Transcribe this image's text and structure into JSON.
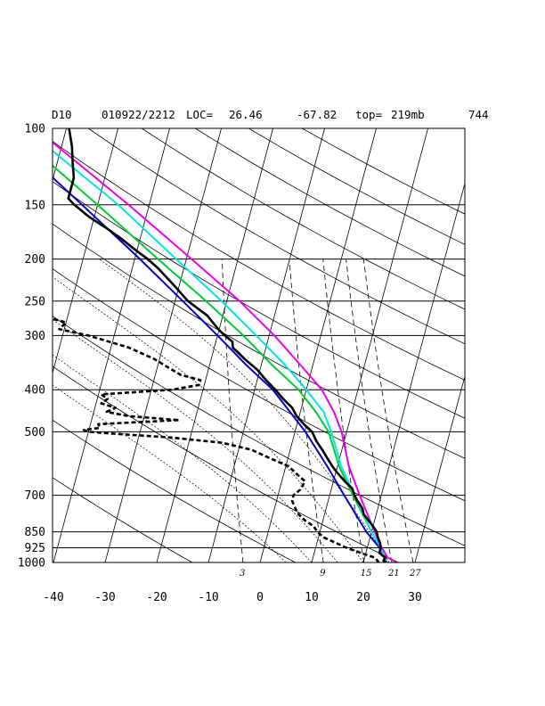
{
  "header": {
    "station": "D10",
    "datetime": "010922/2212",
    "loc_label": "LOC=",
    "lat": "26.46",
    "lon": "-67.82",
    "top_label": "top=",
    "top_value": "219mb",
    "code": "744"
  },
  "chart_data": {
    "type": "line",
    "diagram": "skew-T log-p",
    "xlim": [
      -40,
      35
    ],
    "ylim": [
      1000,
      100
    ],
    "yscale": "log",
    "pressure_ticks": [
      100,
      150,
      200,
      250,
      300,
      400,
      500,
      700,
      850,
      925,
      1000
    ],
    "pressure_tick_labels": [
      "100",
      "150",
      "200",
      "250",
      "300",
      "400",
      "500",
      "700",
      "850",
      "925",
      "1000"
    ],
    "temperature_ticks": [
      -40,
      -30,
      -20,
      -10,
      0,
      10,
      20,
      30
    ],
    "temperature_tick_labels": [
      "-40",
      "-30",
      "-20",
      "-10",
      "0",
      "10",
      "20",
      "30"
    ],
    "mixing_ratio_labels": [
      "3",
      "9",
      "15",
      "21",
      "27"
    ],
    "mixing_ratio_values": [
      3,
      9,
      15,
      21,
      27
    ],
    "isotherm_values": [
      -140,
      -130,
      -120,
      -110,
      -100,
      -90,
      -80,
      -70,
      -60,
      -50,
      -40,
      -30,
      -20,
      -10,
      0,
      10,
      20,
      30
    ],
    "dry_adiabat_thetas": [
      260,
      280,
      300,
      320,
      340,
      360,
      380,
      400,
      420,
      440,
      460,
      480,
      500
    ],
    "moist_adiabat_thetaw": [
      5,
      10,
      15,
      20,
      25
    ],
    "temperature_profile": {
      "color": "#000000",
      "points": [
        [
          1000,
          24.5
        ],
        [
          990,
          23.8
        ],
        [
          975,
          24.0
        ],
        [
          950,
          22.6
        ],
        [
          925,
          22.6
        ],
        [
          900,
          22.2
        ],
        [
          875,
          21.5
        ],
        [
          850,
          21.0
        ],
        [
          825,
          20.0
        ],
        [
          800,
          18.8
        ],
        [
          775,
          17.6
        ],
        [
          750,
          17.0
        ],
        [
          720,
          15.6
        ],
        [
          700,
          14.8
        ],
        [
          675,
          14.0
        ],
        [
          650,
          12.2
        ],
        [
          620,
          10.2
        ],
        [
          600,
          9.0
        ],
        [
          575,
          7.6
        ],
        [
          550,
          6.2
        ],
        [
          525,
          4.6
        ],
        [
          500,
          3.3
        ],
        [
          480,
          1.3
        ],
        [
          460,
          -0.5
        ],
        [
          440,
          -1.8
        ],
        [
          420,
          -4.0
        ],
        [
          400,
          -6.0
        ],
        [
          380,
          -8.3
        ],
        [
          360,
          -10.5
        ],
        [
          340,
          -13.5
        ],
        [
          320,
          -16.4
        ],
        [
          310,
          -16.8
        ],
        [
          300,
          -18.6
        ],
        [
          290,
          -20.2
        ],
        [
          270,
          -23.0
        ],
        [
          250,
          -27.5
        ],
        [
          230,
          -31.0
        ],
        [
          210,
          -35.0
        ],
        [
          200,
          -37.5
        ],
        [
          190,
          -40.5
        ],
        [
          180,
          -43.5
        ],
        [
          170,
          -47.0
        ],
        [
          160,
          -51.0
        ],
        [
          150,
          -54.5
        ],
        [
          145,
          -56.0
        ],
        [
          130,
          -56.0
        ],
        [
          120,
          -57.0
        ],
        [
          110,
          -58.0
        ],
        [
          100,
          -59.5
        ]
      ]
    },
    "dewpoint_profile": {
      "color": "#000000",
      "points": [
        [
          1000,
          23.0
        ],
        [
          975,
          22.0
        ],
        [
          950,
          19.0
        ],
        [
          925,
          16.0
        ],
        [
          900,
          13.5
        ],
        [
          875,
          11.0
        ],
        [
          850,
          9.5
        ],
        [
          825,
          8.5
        ],
        [
          800,
          6.5
        ],
        [
          775,
          5.0
        ],
        [
          750,
          4.0
        ],
        [
          720,
          3.0
        ],
        [
          700,
          3.0
        ],
        [
          680,
          4.0
        ],
        [
          650,
          4.5
        ],
        [
          625,
          2.5
        ],
        [
          600,
          0.5
        ],
        [
          575,
          -3.5
        ],
        [
          550,
          -7.5
        ],
        [
          530,
          -13.5
        ],
        [
          515,
          -24.0
        ],
        [
          505,
          -35.0
        ],
        [
          500,
          -40.0
        ],
        [
          495,
          -41.0
        ],
        [
          490,
          -38.0
        ],
        [
          480,
          -38.5
        ],
        [
          470,
          -23.0
        ],
        [
          460,
          -33.0
        ],
        [
          450,
          -37.5
        ],
        [
          440,
          -36.0
        ],
        [
          430,
          -39.0
        ],
        [
          420,
          -38.0
        ],
        [
          410,
          -39.5
        ],
        [
          400,
          -26.0
        ],
        [
          390,
          -21.0
        ],
        [
          380,
          -21.0
        ],
        [
          370,
          -25.0
        ],
        [
          360,
          -27.0
        ],
        [
          340,
          -31.0
        ],
        [
          320,
          -36.5
        ],
        [
          300,
          -45.0
        ],
        [
          290,
          -51.0
        ],
        [
          280,
          -50.0
        ],
        [
          270,
          -55.0
        ],
        [
          260,
          -53.5
        ]
      ]
    },
    "parcel_profiles": [
      {
        "color": "#0000cc",
        "points": [
          [
            1000,
            24.5
          ],
          [
            925,
            22.4
          ],
          [
            850,
            19.0
          ],
          [
            700,
            12.8
          ],
          [
            600,
            8.0
          ],
          [
            500,
            2.0
          ],
          [
            450,
            -2.0
          ],
          [
            400,
            -6.5
          ],
          [
            350,
            -13.0
          ],
          [
            300,
            -20.0
          ],
          [
            250,
            -28.5
          ],
          [
            200,
            -39.0
          ],
          [
            150,
            -53.0
          ],
          [
            100,
            -73.0
          ]
        ]
      },
      {
        "color": "#00cc33",
        "points": [
          [
            1000,
            24.5
          ],
          [
            925,
            22.6
          ],
          [
            850,
            20.0
          ],
          [
            700,
            14.5
          ],
          [
            600,
            10.3
          ],
          [
            500,
            6.5
          ],
          [
            450,
            3.0
          ],
          [
            400,
            -1.5
          ],
          [
            350,
            -8.0
          ],
          [
            300,
            -15.0
          ],
          [
            250,
            -24.0
          ],
          [
            200,
            -35.5
          ],
          [
            150,
            -50.0
          ],
          [
            100,
            -71.0
          ]
        ]
      },
      {
        "color": "#00e5e5",
        "points": [
          [
            1000,
            24.5
          ],
          [
            925,
            22.6
          ],
          [
            850,
            20.0
          ],
          [
            700,
            14.8
          ],
          [
            600,
            10.7
          ],
          [
            500,
            7.0
          ],
          [
            450,
            4.5
          ],
          [
            400,
            0.0
          ],
          [
            350,
            -5.5
          ],
          [
            300,
            -12.5
          ],
          [
            250,
            -21.0
          ],
          [
            200,
            -32.0
          ],
          [
            150,
            -46.0
          ],
          [
            100,
            -68.0
          ]
        ]
      },
      {
        "color": "#ee00ee",
        "points": [
          [
            1000,
            26.5
          ],
          [
            975,
            24.5
          ],
          [
            925,
            22.8
          ],
          [
            850,
            20.6
          ],
          [
            700,
            15.8
          ],
          [
            600,
            12.2
          ],
          [
            500,
            9.0
          ],
          [
            450,
            6.5
          ],
          [
            400,
            3.0
          ],
          [
            350,
            -2.5
          ],
          [
            300,
            -9.0
          ],
          [
            250,
            -17.5
          ],
          [
            200,
            -29.0
          ],
          [
            150,
            -44.0
          ],
          [
            100,
            -66.0
          ]
        ]
      }
    ]
  }
}
